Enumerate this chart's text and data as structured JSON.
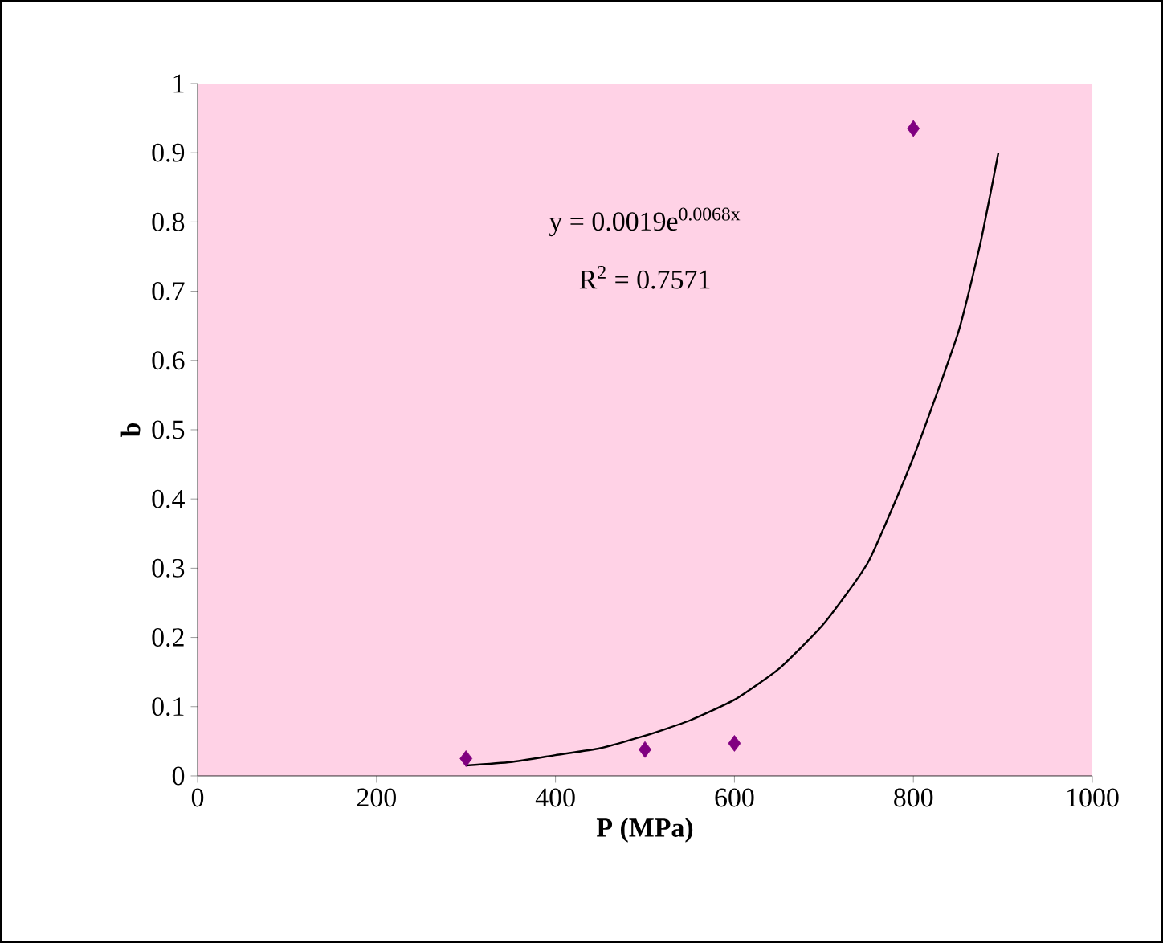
{
  "chart_data": {
    "type": "scatter",
    "xlabel": "P (MPa)",
    "ylabel": "b",
    "annotations": [
      "y = 0.0019e$^{0.0068x}$",
      "R$^{2}$ = 0.7571"
    ],
    "series": [
      {
        "type": "scatter",
        "color": "#800080",
        "marker": "diamond",
        "x": [
          300,
          500,
          600,
          800
        ],
        "values": [
          0.025,
          0.038,
          0.047,
          0.935
        ]
      },
      {
        "type": "line",
        "color": "#000000",
        "marker": "none",
        "x": [
          300,
          350,
          400,
          450,
          500,
          550,
          600,
          650,
          700,
          750,
          800,
          850,
          875,
          895
        ],
        "values": [
          0.015,
          0.02,
          0.03,
          0.04,
          0.058,
          0.08,
          0.11,
          0.155,
          0.22,
          0.31,
          0.46,
          0.64,
          0.77,
          0.9
        ]
      }
    ],
    "xlim": [
      0,
      1000
    ],
    "xticks": [
      0,
      200,
      400,
      600,
      800,
      1000
    ],
    "ylim": [
      0,
      1
    ],
    "yticks": [
      0,
      0.1,
      0.2,
      0.3,
      0.4,
      0.5,
      0.6,
      0.7,
      0.8,
      0.9,
      1
    ]
  }
}
